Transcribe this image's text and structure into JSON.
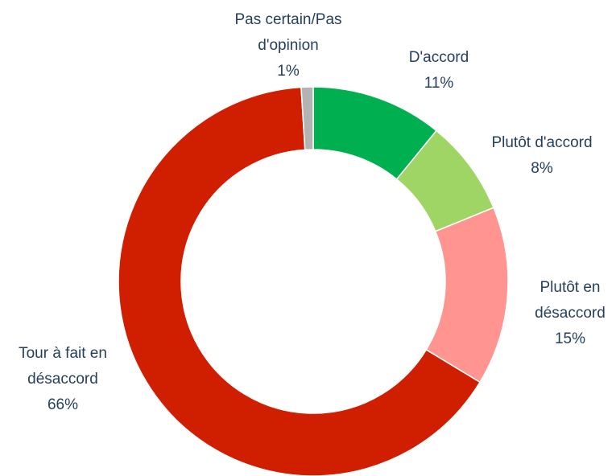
{
  "chart_data": {
    "type": "donut",
    "categories": [
      "D'accord",
      "Plutôt d'accord",
      "Plutôt en désaccord",
      "Tour à fait en désaccord",
      "Pas certain/Pas d'opinion"
    ],
    "values": [
      11,
      8,
      15,
      66,
      1
    ],
    "value_labels": [
      "11%",
      "8%",
      "15%",
      "66%",
      "1%"
    ],
    "colors": [
      "#00b050",
      "#9fd564",
      "#ff9491",
      "#cf1f00",
      "#b3b3b3"
    ]
  }
}
